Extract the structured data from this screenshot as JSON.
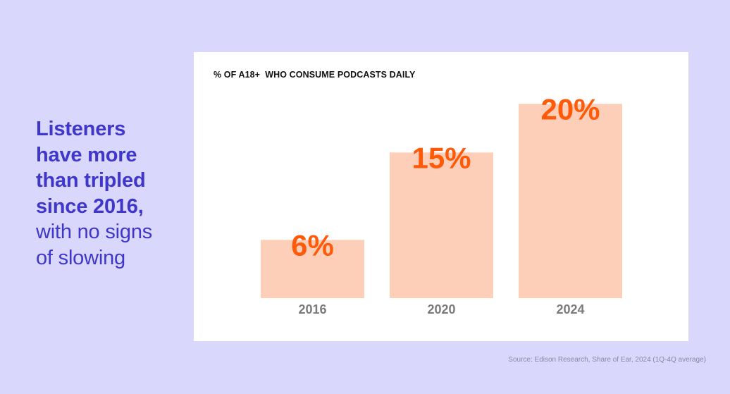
{
  "headline": {
    "bold_lines": [
      "Listeners",
      "have more",
      "than tripled",
      "since 2016,"
    ],
    "light_lines": [
      "with no signs",
      "of slowing"
    ]
  },
  "chart_data": {
    "type": "bar",
    "title": "% OF A18+  WHO CONSUME PODCASTS DAILY",
    "categories": [
      "2016",
      "2020",
      "2024"
    ],
    "values": [
      6,
      15,
      20
    ],
    "value_labels": [
      "6%",
      "15%",
      "20%"
    ],
    "ylim": [
      0,
      22.5
    ],
    "grid": false,
    "colors": {
      "bar": "#fecfb8",
      "value_label": "#ff5a0a",
      "category_label": "#7b7b7b"
    }
  },
  "source": "Source: Edison Research, Share of Ear, 2024 (1Q-4Q average)",
  "colors": {
    "background": "#d9d7fc",
    "headline": "#3f37c9",
    "card": "#ffffff"
  }
}
